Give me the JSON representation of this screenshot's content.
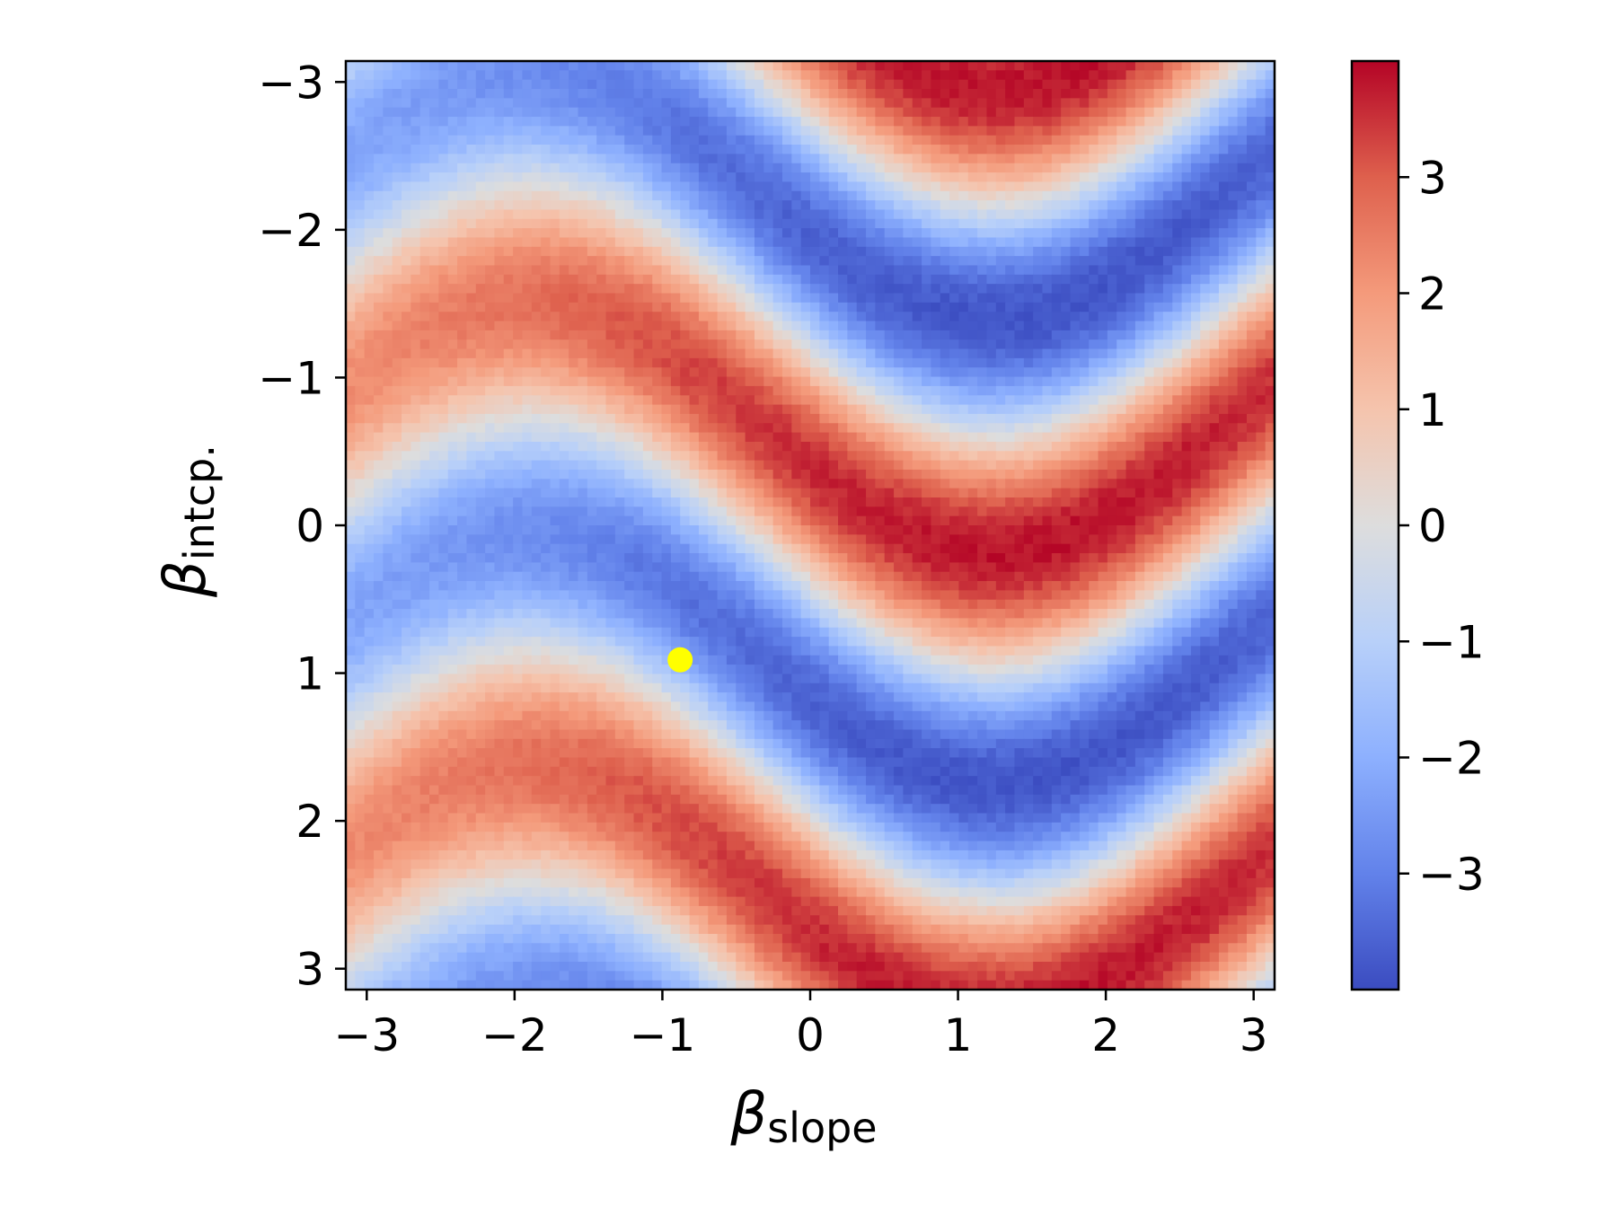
{
  "chart_data": {
    "type": "heatmap",
    "title": "",
    "xlabel": {
      "symbol": "β",
      "subscript": "slope"
    },
    "ylabel": {
      "symbol": "β",
      "subscript": "intcp."
    },
    "x_range": [
      -3.14159,
      3.14159
    ],
    "y_range": [
      -3.14159,
      3.14159
    ],
    "y_inverted": true,
    "x_ticks": [
      {
        "value": -3,
        "label": "−3"
      },
      {
        "value": -2,
        "label": "−2"
      },
      {
        "value": -1,
        "label": "−1"
      },
      {
        "value": 0,
        "label": "0"
      },
      {
        "value": 1,
        "label": "1"
      },
      {
        "value": 2,
        "label": "2"
      },
      {
        "value": 3,
        "label": "3"
      }
    ],
    "y_ticks": [
      {
        "value": -3,
        "label": "−3"
      },
      {
        "value": -2,
        "label": "−2"
      },
      {
        "value": -1,
        "label": "−1"
      },
      {
        "value": 0,
        "label": "0"
      },
      {
        "value": 1,
        "label": "1"
      },
      {
        "value": 2,
        "label": "2"
      },
      {
        "value": 3,
        "label": "3"
      }
    ],
    "grid_resolution": 100,
    "colormap": "coolwarm",
    "value_range": [
      -4,
      4
    ],
    "colorbar": {
      "ticks": [
        {
          "value": 3,
          "label": "3"
        },
        {
          "value": 2,
          "label": "2"
        },
        {
          "value": 1,
          "label": "1"
        },
        {
          "value": 0,
          "label": "0"
        },
        {
          "value": -1,
          "label": "−1"
        },
        {
          "value": -2,
          "label": "−2"
        },
        {
          "value": -3,
          "label": "−3"
        }
      ]
    },
    "marker": {
      "x": -0.88,
      "y": 0.91,
      "color": "#ffff00"
    },
    "grid": false
  }
}
